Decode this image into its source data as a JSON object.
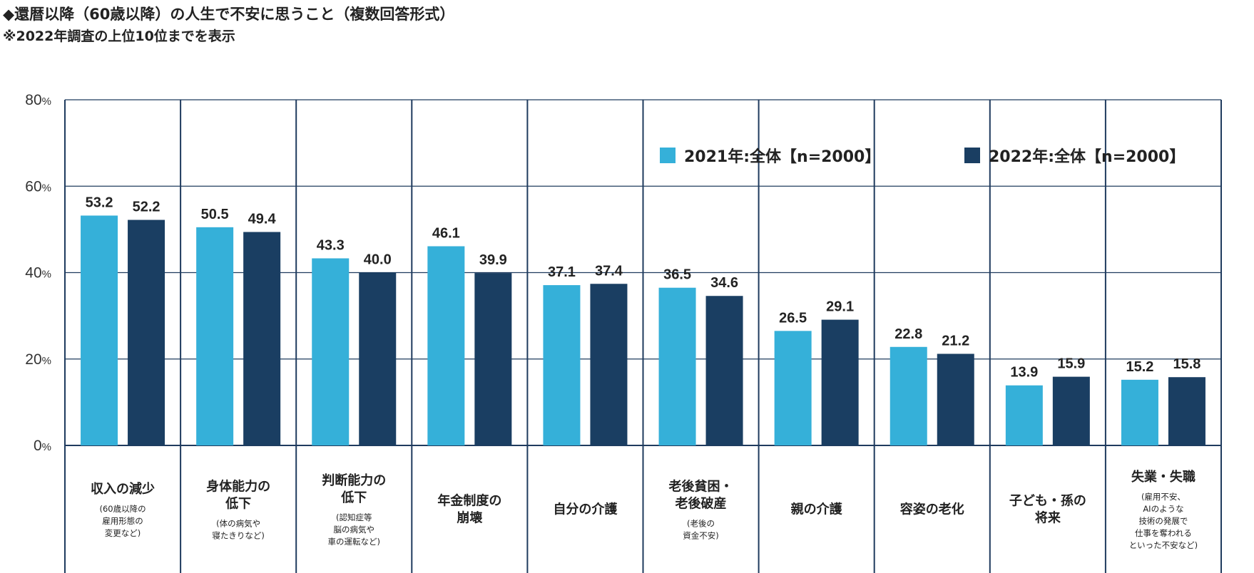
{
  "title": "◆還暦以降（60歳以降）の人生で不安に思うこと（複数回答形式）",
  "subtitle": "※2022年調査の上位10位までを表示",
  "colors": {
    "s2021": "#35b0d9",
    "s2022": "#1a3e62",
    "grid": "#1f3b5e"
  },
  "chart_data": {
    "type": "bar",
    "ylim": [
      0,
      80
    ],
    "yticks": [
      0,
      20,
      40,
      60,
      80
    ],
    "ytick_suffix": "%",
    "legend_position": "top-right",
    "categories": [
      {
        "label": [
          "収入の減少"
        ],
        "note": [
          "(60歳以降の",
          "雇用形態の",
          "変更など)"
        ]
      },
      {
        "label": [
          "身体能力の",
          "低下"
        ],
        "note": [
          "(体の病気や",
          "寝たきりなど)"
        ]
      },
      {
        "label": [
          "判断能力の",
          "低下"
        ],
        "note": [
          "(認知症等",
          "脳の病気や",
          "車の運転など)"
        ]
      },
      {
        "label": [
          "年金制度の",
          "崩壊"
        ],
        "note": []
      },
      {
        "label": [
          "自分の介護"
        ],
        "note": []
      },
      {
        "label": [
          "老後貧困・",
          "老後破産"
        ],
        "note": [
          "(老後の",
          "資金不安)"
        ]
      },
      {
        "label": [
          "親の介護"
        ],
        "note": []
      },
      {
        "label": [
          "容姿の老化"
        ],
        "note": []
      },
      {
        "label": [
          "子ども・孫の",
          "将来"
        ],
        "note": []
      },
      {
        "label": [
          "失業・失職"
        ],
        "note": [
          "(雇用不安、",
          "AIのような",
          "技術の発展で",
          "仕事を奪われる",
          "といった不安など)"
        ]
      }
    ],
    "series": [
      {
        "name": "2021年:全体【n=2000】",
        "values": [
          53.2,
          50.5,
          43.3,
          46.1,
          37.1,
          36.5,
          26.5,
          22.8,
          13.9,
          15.2
        ]
      },
      {
        "name": "2022年:全体【n=2000】",
        "values": [
          52.2,
          49.4,
          40.0,
          39.9,
          37.4,
          34.6,
          29.1,
          21.2,
          15.9,
          15.8
        ]
      }
    ]
  }
}
